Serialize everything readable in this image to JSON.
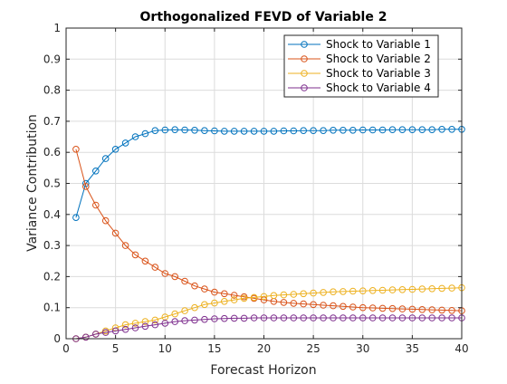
{
  "chart_data": {
    "type": "line",
    "title": "Orthogonalized FEVD of Variable 2",
    "xlabel": "Forecast Horizon",
    "ylabel": "Variance Contribution",
    "xlim": [
      0,
      40
    ],
    "ylim": [
      0,
      1
    ],
    "xticks": [
      "0",
      "5",
      "10",
      "15",
      "20",
      "25",
      "30",
      "35",
      "40"
    ],
    "yticks": [
      "0",
      "0.1",
      "0.2",
      "0.3",
      "0.4",
      "0.5",
      "0.6",
      "0.7",
      "0.8",
      "0.9",
      "1"
    ],
    "grid": true,
    "legend_position": "top-right",
    "marker": "circle",
    "x": [
      1,
      2,
      3,
      4,
      5,
      6,
      7,
      8,
      9,
      10,
      11,
      12,
      13,
      14,
      15,
      16,
      17,
      18,
      19,
      20,
      21,
      22,
      23,
      24,
      25,
      26,
      27,
      28,
      29,
      30,
      31,
      32,
      33,
      34,
      35,
      36,
      37,
      38,
      39,
      40
    ],
    "series": [
      {
        "name": "Shock to Variable 1",
        "color": "#0072BD",
        "values": [
          0.39,
          0.5,
          0.54,
          0.58,
          0.61,
          0.63,
          0.65,
          0.66,
          0.67,
          0.672,
          0.673,
          0.672,
          0.671,
          0.67,
          0.669,
          0.668,
          0.668,
          0.668,
          0.668,
          0.668,
          0.668,
          0.669,
          0.669,
          0.67,
          0.67,
          0.67,
          0.671,
          0.671,
          0.671,
          0.672,
          0.672,
          0.672,
          0.673,
          0.673,
          0.673,
          0.673,
          0.673,
          0.674,
          0.674,
          0.674
        ]
      },
      {
        "name": "Shock to Variable 2",
        "color": "#D95319",
        "values": [
          0.61,
          0.49,
          0.43,
          0.38,
          0.34,
          0.3,
          0.27,
          0.25,
          0.23,
          0.21,
          0.2,
          0.185,
          0.17,
          0.16,
          0.15,
          0.145,
          0.14,
          0.135,
          0.13,
          0.125,
          0.12,
          0.117,
          0.114,
          0.112,
          0.11,
          0.108,
          0.106,
          0.104,
          0.102,
          0.1,
          0.099,
          0.098,
          0.097,
          0.096,
          0.095,
          0.094,
          0.093,
          0.092,
          0.091,
          0.09
        ]
      },
      {
        "name": "Shock to Variable 3",
        "color": "#EDB120",
        "values": [
          0.0,
          0.005,
          0.015,
          0.025,
          0.035,
          0.045,
          0.05,
          0.055,
          0.06,
          0.07,
          0.08,
          0.09,
          0.1,
          0.11,
          0.115,
          0.12,
          0.125,
          0.13,
          0.133,
          0.136,
          0.139,
          0.141,
          0.143,
          0.145,
          0.147,
          0.149,
          0.151,
          0.152,
          0.153,
          0.154,
          0.155,
          0.156,
          0.157,
          0.158,
          0.159,
          0.16,
          0.161,
          0.162,
          0.163,
          0.164
        ]
      },
      {
        "name": "Shock to Variable 4",
        "color": "#7E2F8E",
        "values": [
          0.0,
          0.005,
          0.015,
          0.02,
          0.025,
          0.03,
          0.035,
          0.04,
          0.045,
          0.05,
          0.055,
          0.058,
          0.06,
          0.062,
          0.064,
          0.065,
          0.066,
          0.066,
          0.067,
          0.067,
          0.067,
          0.067,
          0.067,
          0.067,
          0.067,
          0.067,
          0.067,
          0.067,
          0.067,
          0.067,
          0.067,
          0.067,
          0.067,
          0.067,
          0.067,
          0.067,
          0.067,
          0.067,
          0.067,
          0.067
        ]
      }
    ]
  }
}
